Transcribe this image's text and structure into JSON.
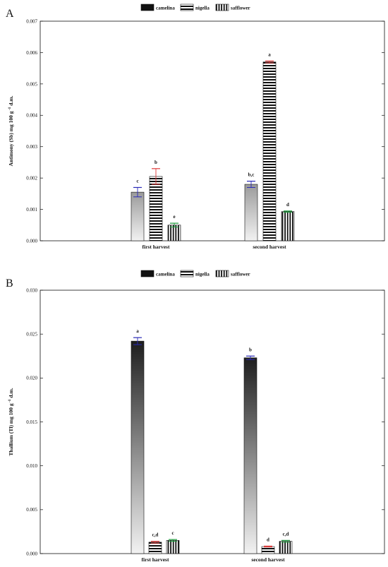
{
  "chart_data": [
    {
      "panel": "A",
      "type": "bar",
      "ylabel_main": "Antimony (Sb) mg 100 g",
      "ylabel_sup": "-1",
      "ylabel_tail": " d.m.",
      "ylim": [
        0,
        0.007
      ],
      "yticks": [
        "0.000",
        "0.001",
        "0.002",
        "0.003",
        "0.004",
        "0.005",
        "0.006",
        "0.007"
      ],
      "categories": [
        "first harvest",
        "second harvest"
      ],
      "legend": [
        "camelina",
        "nigella",
        "safflower"
      ],
      "series": [
        {
          "name": "camelina",
          "values": [
            0.00155,
            0.0018
          ],
          "errors": [
            0.00015,
            0.0001
          ],
          "labels": [
            "c",
            "b,c"
          ],
          "err_color": "#2a2ab8"
        },
        {
          "name": "nigella",
          "values": [
            0.00205,
            0.0057
          ],
          "errors": [
            0.00025,
            3e-05
          ],
          "labels": [
            "b",
            "a"
          ],
          "err_color": "#e03a3a"
        },
        {
          "name": "safflower",
          "values": [
            0.0005,
            0.00093
          ],
          "errors": [
            6e-05,
            2e-05
          ],
          "labels": [
            "e",
            "d"
          ],
          "err_color": "#1a9a3a"
        }
      ]
    },
    {
      "panel": "B",
      "type": "bar",
      "ylabel_main": "Thallium (Tl) mg 100 g",
      "ylabel_sup": "-1",
      "ylabel_tail": " d.m.",
      "ylim": [
        0,
        0.03
      ],
      "yticks": [
        "0.000",
        "0.005",
        "0.010",
        "0.015",
        "0.020",
        "0.025",
        "0.030"
      ],
      "categories": [
        "first harvest",
        "second harvest"
      ],
      "legend": [
        "camelina",
        "nigella",
        "safflower"
      ],
      "series": [
        {
          "name": "camelina",
          "values": [
            0.0242,
            0.0223
          ],
          "errors": [
            0.0004,
            0.0002
          ],
          "labels": [
            "a",
            "b"
          ],
          "err_color": "#2a2ab8"
        },
        {
          "name": "nigella",
          "values": [
            0.0013,
            0.0008
          ],
          "errors": [
            0.0001,
            5e-05
          ],
          "labels": [
            "c,d",
            "d"
          ],
          "err_color": "#e03a3a"
        },
        {
          "name": "safflower",
          "values": [
            0.0015,
            0.0014
          ],
          "errors": [
            0.0001,
            0.0001
          ],
          "labels": [
            "c",
            "c,d"
          ],
          "err_color": "#1a9a3a"
        }
      ]
    }
  ]
}
